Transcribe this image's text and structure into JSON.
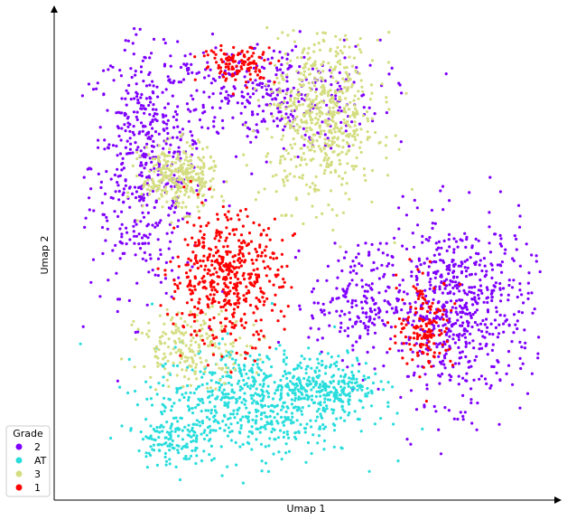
{
  "chart_data": {
    "type": "scatter",
    "xlabel": "Umap 1",
    "ylabel": "Umap 2",
    "grid": false,
    "ticks": false,
    "legend": {
      "title": "Grade",
      "placement": "lower-left",
      "entries": [
        {
          "label": "2",
          "color": "#7f00ff"
        },
        {
          "label": "AT",
          "color": "#2adddd"
        },
        {
          "label": "3",
          "color": "#d4dd80"
        },
        {
          "label": "1",
          "color": "#ff0000"
        }
      ]
    },
    "series": [
      {
        "name": "2",
        "color": "#7f00ff",
        "regions": [
          {
            "cx": 0.15,
            "cy": 0.7,
            "rx": 0.12,
            "ry": 0.28,
            "points": 500
          },
          {
            "cx": 0.4,
            "cy": 0.85,
            "rx": 0.25,
            "ry": 0.12,
            "points": 350
          },
          {
            "cx": 0.82,
            "cy": 0.38,
            "rx": 0.16,
            "ry": 0.2,
            "points": 650
          },
          {
            "cx": 0.6,
            "cy": 0.4,
            "rx": 0.1,
            "ry": 0.12,
            "points": 180
          }
        ]
      },
      {
        "name": "AT",
        "color": "#2adddd",
        "regions": [
          {
            "cx": 0.38,
            "cy": 0.18,
            "rx": 0.22,
            "ry": 0.12,
            "points": 650
          },
          {
            "cx": 0.55,
            "cy": 0.22,
            "rx": 0.1,
            "ry": 0.06,
            "points": 200
          },
          {
            "cx": 0.2,
            "cy": 0.1,
            "rx": 0.07,
            "ry": 0.06,
            "points": 120
          }
        ]
      },
      {
        "name": "3",
        "color": "#d4dd80",
        "regions": [
          {
            "cx": 0.53,
            "cy": 0.8,
            "rx": 0.12,
            "ry": 0.18,
            "points": 600
          },
          {
            "cx": 0.22,
            "cy": 0.67,
            "rx": 0.08,
            "ry": 0.07,
            "points": 300
          },
          {
            "cx": 0.25,
            "cy": 0.3,
            "rx": 0.12,
            "ry": 0.08,
            "points": 200
          }
        ]
      },
      {
        "name": "1",
        "color": "#ff0000",
        "regions": [
          {
            "cx": 0.32,
            "cy": 0.45,
            "rx": 0.12,
            "ry": 0.14,
            "points": 500
          },
          {
            "cx": 0.35,
            "cy": 0.92,
            "rx": 0.08,
            "ry": 0.04,
            "points": 120
          },
          {
            "cx": 0.75,
            "cy": 0.35,
            "rx": 0.06,
            "ry": 0.1,
            "points": 150
          }
        ]
      }
    ]
  }
}
